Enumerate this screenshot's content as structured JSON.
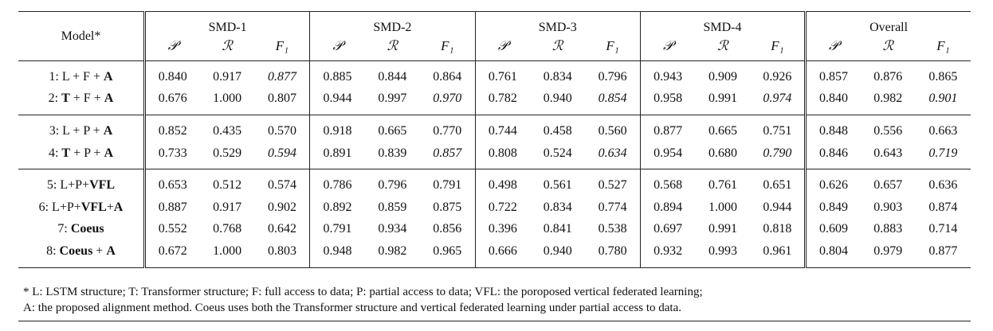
{
  "table": {
    "model_header": "Model*",
    "groups": [
      "SMD-1",
      "SMD-2",
      "SMD-3",
      "SMD-4",
      "Overall"
    ],
    "metrics": [
      "𝒫",
      "ℛ",
      "F₁"
    ],
    "sections": [
      [
        {
          "model_parts": [
            {
              "t": "1: L + F + ",
              "b": false
            },
            {
              "t": "A",
              "b": true
            }
          ],
          "cells": [
            [
              "0.840",
              "0.917",
              "0.877"
            ],
            [
              "0.885",
              "0.844",
              "0.864"
            ],
            [
              "0.761",
              "0.834",
              "0.796"
            ],
            [
              "0.943",
              "0.909",
              "0.926"
            ],
            [
              "0.857",
              "0.876",
              "0.865"
            ]
          ],
          "fmt": [
            [
              0,
              0,
              1
            ],
            [
              0,
              0,
              0
            ],
            [
              0,
              0,
              0
            ],
            [
              0,
              0,
              0
            ],
            [
              0,
              0,
              0
            ]
          ]
        },
        {
          "model_parts": [
            {
              "t": "2: ",
              "b": false
            },
            {
              "t": "T",
              "b": true
            },
            {
              "t": " + F + ",
              "b": false
            },
            {
              "t": "A",
              "b": true
            }
          ],
          "cells": [
            [
              "0.676",
              "1.000",
              "0.807"
            ],
            [
              "0.944",
              "0.997",
              "0.970"
            ],
            [
              "0.782",
              "0.940",
              "0.854"
            ],
            [
              "0.958",
              "0.991",
              "0.974"
            ],
            [
              "0.840",
              "0.982",
              "0.901"
            ]
          ],
          "fmt": [
            [
              0,
              0,
              0
            ],
            [
              0,
              0,
              1
            ],
            [
              0,
              0,
              1
            ],
            [
              0,
              0,
              1
            ],
            [
              0,
              0,
              1
            ]
          ]
        }
      ],
      [
        {
          "model_parts": [
            {
              "t": "3: L + P + ",
              "b": false
            },
            {
              "t": "A",
              "b": true
            }
          ],
          "cells": [
            [
              "0.852",
              "0.435",
              "0.570"
            ],
            [
              "0.918",
              "0.665",
              "0.770"
            ],
            [
              "0.744",
              "0.458",
              "0.560"
            ],
            [
              "0.877",
              "0.665",
              "0.751"
            ],
            [
              "0.848",
              "0.556",
              "0.663"
            ]
          ],
          "fmt": [
            [
              0,
              0,
              0
            ],
            [
              0,
              0,
              0
            ],
            [
              0,
              0,
              0
            ],
            [
              0,
              0,
              0
            ],
            [
              0,
              0,
              0
            ]
          ]
        },
        {
          "model_parts": [
            {
              "t": "4: ",
              "b": false
            },
            {
              "t": "T",
              "b": true
            },
            {
              "t": " + P + ",
              "b": false
            },
            {
              "t": "A",
              "b": true
            }
          ],
          "cells": [
            [
              "0.733",
              "0.529",
              "0.594"
            ],
            [
              "0.891",
              "0.839",
              "0.857"
            ],
            [
              "0.808",
              "0.524",
              "0.634"
            ],
            [
              "0.954",
              "0.680",
              "0.790"
            ],
            [
              "0.846",
              "0.643",
              "0.719"
            ]
          ],
          "fmt": [
            [
              0,
              0,
              1
            ],
            [
              0,
              0,
              1
            ],
            [
              0,
              0,
              1
            ],
            [
              0,
              0,
              1
            ],
            [
              0,
              0,
              1
            ]
          ]
        }
      ],
      [
        {
          "model_parts": [
            {
              "t": "5: L+P+",
              "b": false
            },
            {
              "t": "VFL",
              "b": true
            }
          ],
          "cells": [
            [
              "0.653",
              "0.512",
              "0.574"
            ],
            [
              "0.786",
              "0.796",
              "0.791"
            ],
            [
              "0.498",
              "0.561",
              "0.527"
            ],
            [
              "0.568",
              "0.761",
              "0.651"
            ],
            [
              "0.626",
              "0.657",
              "0.636"
            ]
          ],
          "fmt": [
            [
              0,
              0,
              0
            ],
            [
              0,
              0,
              0
            ],
            [
              0,
              0,
              0
            ],
            [
              0,
              0,
              0
            ],
            [
              0,
              0,
              0
            ]
          ]
        },
        {
          "model_parts": [
            {
              "t": "6: L+P+",
              "b": false
            },
            {
              "t": "VFL",
              "b": true
            },
            {
              "t": "+",
              "b": false
            },
            {
              "t": "A",
              "b": true
            }
          ],
          "cells": [
            [
              "0.887",
              "0.917",
              "0.902"
            ],
            [
              "0.892",
              "0.859",
              "0.875"
            ],
            [
              "0.722",
              "0.834",
              "0.774"
            ],
            [
              "0.894",
              "1.000",
              "0.944"
            ],
            [
              "0.849",
              "0.903",
              "0.874"
            ]
          ],
          "fmt": [
            [
              0,
              0,
              2
            ],
            [
              0,
              0,
              0
            ],
            [
              0,
              0,
              0
            ],
            [
              0,
              0,
              0
            ],
            [
              0,
              0,
              0
            ]
          ]
        },
        {
          "model_parts": [
            {
              "t": "7: ",
              "b": false
            },
            {
              "t": "Coeus",
              "b": true
            }
          ],
          "cells": [
            [
              "0.552",
              "0.768",
              "0.642"
            ],
            [
              "0.791",
              "0.934",
              "0.856"
            ],
            [
              "0.396",
              "0.841",
              "0.538"
            ],
            [
              "0.697",
              "0.991",
              "0.818"
            ],
            [
              "0.609",
              "0.883",
              "0.714"
            ]
          ],
          "fmt": [
            [
              0,
              0,
              0
            ],
            [
              0,
              0,
              0
            ],
            [
              0,
              0,
              0
            ],
            [
              0,
              0,
              0
            ],
            [
              0,
              0,
              0
            ]
          ]
        },
        {
          "model_parts": [
            {
              "t": "8: ",
              "b": false
            },
            {
              "t": "Coeus",
              "b": true
            },
            {
              "t": " + ",
              "b": false
            },
            {
              "t": "A",
              "b": true
            }
          ],
          "cells": [
            [
              "0.672",
              "1.000",
              "0.803"
            ],
            [
              "0.948",
              "0.982",
              "0.965"
            ],
            [
              "0.666",
              "0.940",
              "0.780"
            ],
            [
              "0.932",
              "0.993",
              "0.961"
            ],
            [
              "0.804",
              "0.979",
              "0.877"
            ]
          ],
          "fmt": [
            [
              0,
              0,
              0
            ],
            [
              0,
              0,
              2
            ],
            [
              0,
              0,
              2
            ],
            [
              0,
              0,
              2
            ],
            [
              0,
              0,
              2
            ]
          ]
        }
      ]
    ]
  },
  "footnote": {
    "line1": "* L: LSTM structure; T: Transformer structure; F: full access to data; P: partial access to data; VFL: the poroposed vertical federated learning;",
    "line2": "A: the proposed alignment method. Coeus uses both the Transformer structure and vertical federated learning under partial access to data."
  }
}
